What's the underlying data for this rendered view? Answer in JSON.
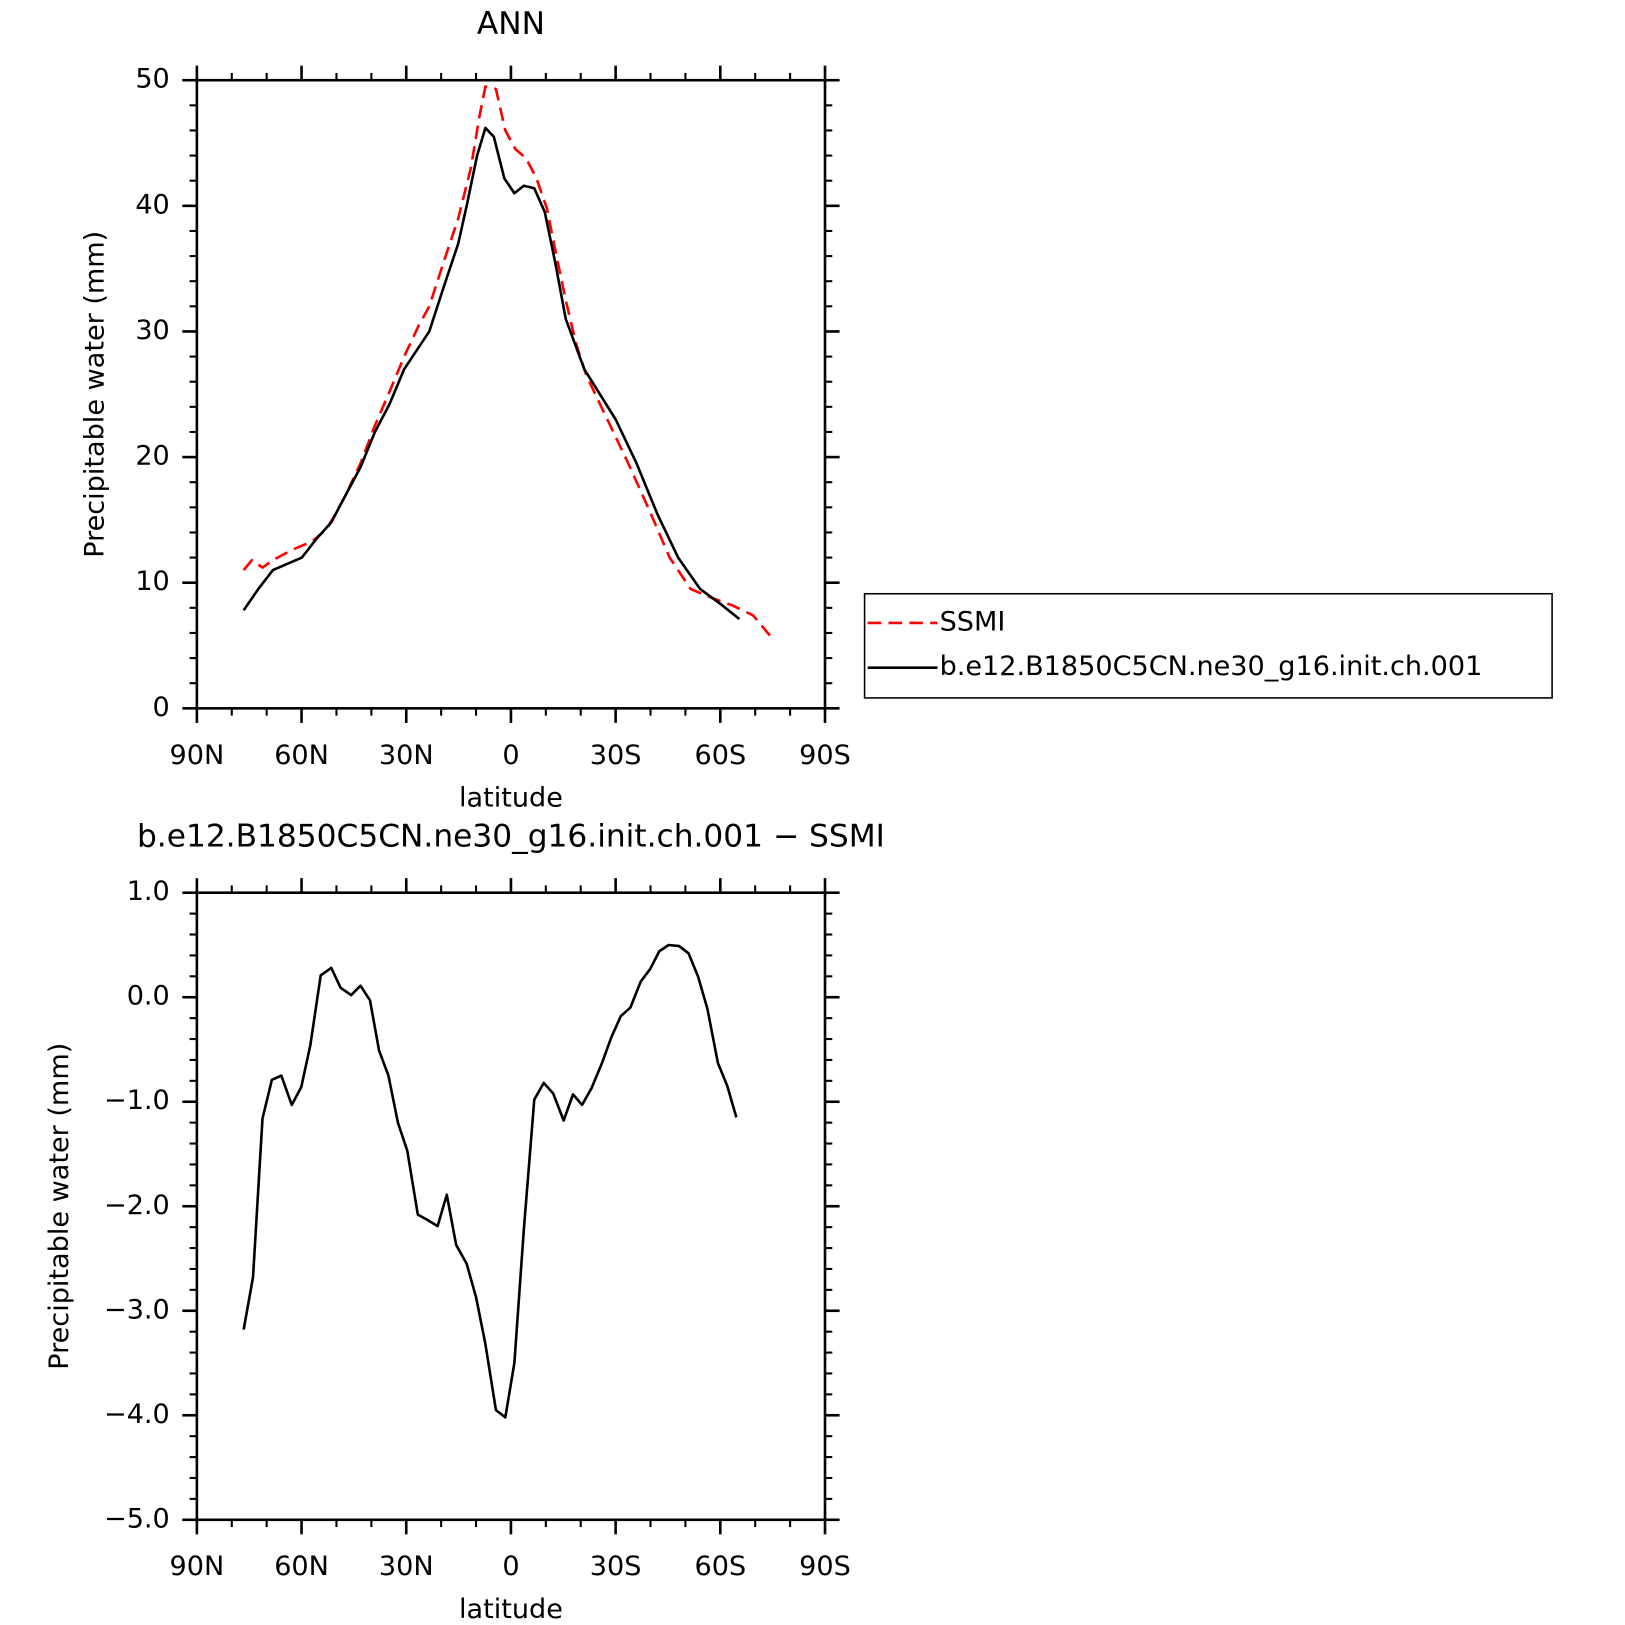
{
  "chart_data": [
    {
      "type": "line",
      "title": "ANN",
      "xlabel": "latitude",
      "ylabel": "Precipitable water (mm)",
      "xlim": [
        90,
        -90
      ],
      "xticks": [
        {
          "value": 90,
          "label": "90N"
        },
        {
          "value": 60,
          "label": "60N"
        },
        {
          "value": 30,
          "label": "30N"
        },
        0,
        {
          "value": -30,
          "label": "30S"
        },
        {
          "value": -60,
          "label": "60S"
        },
        {
          "value": -90,
          "label": "90S"
        }
      ],
      "ylim": [
        0,
        50
      ],
      "yticks": [
        0,
        10,
        20,
        30,
        40,
        50
      ],
      "legend": "right",
      "series": [
        {
          "name": "SSMI",
          "color": "#ff0000",
          "dashed": true,
          "x": [
            76.6,
            74.2,
            71.2,
            68.2,
            62.8,
            56.9,
            52.7,
            47.3,
            43.1,
            39.0,
            34.8,
            30.6,
            26.4,
            23.4,
            19.3,
            15.1,
            11.5,
            9.1,
            7.3,
            4.3,
            1.6,
            -1.3,
            -4.3,
            -7.3,
            -10.3,
            -12.7,
            -15.7,
            -18.7,
            -21.6,
            -27.6,
            -33.6,
            -39.6,
            -45.5,
            -51.5,
            -57.5,
            -63.4,
            -69.4,
            -74.2
          ],
          "values": [
            11,
            11.8,
            11.2,
            11.8,
            12.6,
            13.3,
            14.3,
            17,
            19.5,
            22.5,
            25.2,
            28,
            30.5,
            32,
            35.5,
            39,
            43,
            47,
            49.5,
            49.3,
            46,
            44.5,
            43.8,
            42.2,
            39.8,
            36.5,
            32.5,
            29,
            26.5,
            23,
            19.5,
            15.8,
            12,
            9.5,
            8.8,
            8.2,
            7.4,
            5.8
          ]
        },
        {
          "name": "b.e12.B1850C5CN.ne30_g16.init.ch.001",
          "color": "#000000",
          "dashed": false,
          "x": [
            76.6,
            72.4,
            68.2,
            59.9,
            55.7,
            51.5,
            47.3,
            43.1,
            39.0,
            34.8,
            30.6,
            23.4,
            19.3,
            15.1,
            12.7,
            9.7,
            7.3,
            4.9,
            1.9,
            -1.0,
            -3.7,
            -6.7,
            -9.7,
            -12.7,
            -15.7,
            -21.0,
            -30.0,
            -36.0,
            -41.9,
            -47.9,
            -54.2,
            -60.1,
            -65.5
          ],
          "values": [
            7.8,
            9.5,
            11,
            12,
            13.5,
            14.8,
            17,
            19.2,
            22,
            24.2,
            27,
            30,
            33.5,
            37,
            40,
            44,
            46.2,
            45.5,
            42.2,
            41,
            41.6,
            41.4,
            39.5,
            35.5,
            31,
            27,
            23,
            19.5,
            15.5,
            12,
            9.5,
            8.3,
            7.1
          ]
        }
      ]
    },
    {
      "type": "line",
      "title": "b.e12.B1850C5CN.ne30_g16.init.ch.001 − SSMI",
      "xlabel": "latitude",
      "ylabel": "Precipitable water (mm)",
      "xlim": [
        90,
        -90
      ],
      "xticks": [
        {
          "value": 90,
          "label": "90N"
        },
        {
          "value": 60,
          "label": "60N"
        },
        {
          "value": 30,
          "label": "30N"
        },
        0,
        {
          "value": -30,
          "label": "30S"
        },
        {
          "value": -60,
          "label": "60S"
        },
        {
          "value": -90,
          "label": "90S"
        }
      ],
      "ylim": [
        -5,
        1
      ],
      "yticks": [
        {
          "value": 1,
          "label": "1.0"
        },
        {
          "value": 0,
          "label": "0.0"
        },
        {
          "value": -1,
          "label": "−1.0"
        },
        {
          "value": -2,
          "label": "−2.0"
        },
        {
          "value": -3,
          "label": "−3.0"
        },
        {
          "value": -4,
          "label": "−4.0"
        },
        {
          "value": -5,
          "label": "−5.0"
        }
      ],
      "series": [
        {
          "color": "#000000",
          "dashed": false,
          "x": [
            76.6,
            73.9,
            71.2,
            68.5,
            65.8,
            62.8,
            60.1,
            57.5,
            54.5,
            51.5,
            48.8,
            45.8,
            43.1,
            40.4,
            37.8,
            35.1,
            32.4,
            29.7,
            26.7,
            24.0,
            21.0,
            18.4,
            15.7,
            12.7,
            10.0,
            7.3,
            4.3,
            1.6,
            -1.0,
            -3.7,
            -6.7,
            -9.4,
            -12.1,
            -15.1,
            -17.8,
            -20.4,
            -23.1,
            -26.1,
            -28.8,
            -31.5,
            -34.2,
            -37.2,
            -39.9,
            -42.5,
            -45.2,
            -48.2,
            -50.9,
            -53.6,
            -56.3,
            -59.3,
            -62.0,
            -64.6
          ],
          "values": [
            -3.18,
            -2.68,
            -1.16,
            -0.79,
            -0.75,
            -1.03,
            -0.86,
            -0.46,
            0.21,
            0.28,
            0.09,
            0.02,
            0.11,
            -0.03,
            -0.51,
            -0.75,
            -1.2,
            -1.47,
            -2.08,
            -2.13,
            -2.19,
            -1.89,
            -2.37,
            -2.55,
            -2.87,
            -3.32,
            -3.95,
            -4.02,
            -3.5,
            -2.22,
            -0.98,
            -0.82,
            -0.92,
            -1.18,
            -0.93,
            -1.03,
            -0.87,
            -0.63,
            -0.38,
            -0.18,
            -0.1,
            0.15,
            0.27,
            0.44,
            0.5,
            0.49,
            0.42,
            0.2,
            -0.11,
            -0.63,
            -0.85,
            -1.15
          ]
        }
      ]
    }
  ]
}
